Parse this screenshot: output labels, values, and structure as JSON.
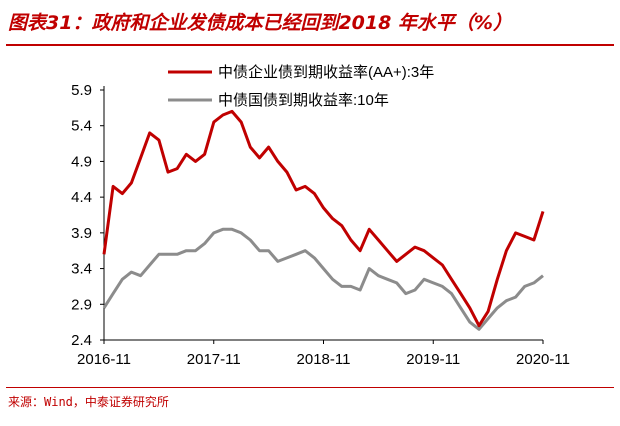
{
  "header": {
    "title": "图表31：政府和企业发债成本已经回到2018 年水平（%）"
  },
  "footer": {
    "source": "来源：Wind，中泰证券研究所"
  },
  "colors": {
    "title_red": "#c00000",
    "series_red": "#c00000",
    "series_gray": "#8c8c8c"
  },
  "chart_data": {
    "type": "line",
    "title": "",
    "xlabel": "",
    "ylabel": "",
    "ylim": [
      2.4,
      5.9
    ],
    "yticks": [
      "5.9",
      "5.4",
      "4.9",
      "4.4",
      "3.9",
      "3.4",
      "2.9",
      "2.4"
    ],
    "xticks": [
      "2016-11",
      "2017-11",
      "2018-11",
      "2019-11",
      "2020-11"
    ],
    "x_range": [
      "2016-11",
      "2020-11"
    ],
    "grid": false,
    "legend_position": "top-center",
    "series": [
      {
        "name": "中债企业债到期收益率(AA+):3年",
        "color": "#c00000",
        "points": [
          [
            "2016-11",
            3.6
          ],
          [
            "2016-12",
            4.55
          ],
          [
            "2017-01",
            4.45
          ],
          [
            "2017-02",
            4.6
          ],
          [
            "2017-03",
            4.95
          ],
          [
            "2017-04",
            5.3
          ],
          [
            "2017-05",
            5.2
          ],
          [
            "2017-06",
            4.75
          ],
          [
            "2017-07",
            4.8
          ],
          [
            "2017-08",
            5.0
          ],
          [
            "2017-09",
            4.9
          ],
          [
            "2017-10",
            5.0
          ],
          [
            "2017-11",
            5.45
          ],
          [
            "2017-12",
            5.55
          ],
          [
            "2018-01",
            5.6
          ],
          [
            "2018-02",
            5.45
          ],
          [
            "2018-03",
            5.1
          ],
          [
            "2018-04",
            4.95
          ],
          [
            "2018-05",
            5.1
          ],
          [
            "2018-06",
            4.9
          ],
          [
            "2018-07",
            4.75
          ],
          [
            "2018-08",
            4.5
          ],
          [
            "2018-09",
            4.55
          ],
          [
            "2018-10",
            4.45
          ],
          [
            "2018-11",
            4.25
          ],
          [
            "2018-12",
            4.1
          ],
          [
            "2019-01",
            4.0
          ],
          [
            "2019-02",
            3.8
          ],
          [
            "2019-03",
            3.65
          ],
          [
            "2019-04",
            3.95
          ],
          [
            "2019-05",
            3.8
          ],
          [
            "2019-06",
            3.65
          ],
          [
            "2019-07",
            3.5
          ],
          [
            "2019-08",
            3.6
          ],
          [
            "2019-09",
            3.7
          ],
          [
            "2019-10",
            3.65
          ],
          [
            "2019-11",
            3.55
          ],
          [
            "2019-12",
            3.45
          ],
          [
            "2020-01",
            3.25
          ],
          [
            "2020-02",
            3.05
          ],
          [
            "2020-03",
            2.85
          ],
          [
            "2020-04",
            2.6
          ],
          [
            "2020-05",
            2.8
          ],
          [
            "2020-06",
            3.25
          ],
          [
            "2020-07",
            3.65
          ],
          [
            "2020-08",
            3.9
          ],
          [
            "2020-09",
            3.85
          ],
          [
            "2020-10",
            3.8
          ],
          [
            "2020-11",
            4.2
          ]
        ]
      },
      {
        "name": "中债国债到期收益率:10年",
        "color": "#8c8c8c",
        "points": [
          [
            "2016-11",
            2.85
          ],
          [
            "2016-12",
            3.05
          ],
          [
            "2017-01",
            3.25
          ],
          [
            "2017-02",
            3.35
          ],
          [
            "2017-03",
            3.3
          ],
          [
            "2017-04",
            3.45
          ],
          [
            "2017-05",
            3.6
          ],
          [
            "2017-06",
            3.6
          ],
          [
            "2017-07",
            3.6
          ],
          [
            "2017-08",
            3.65
          ],
          [
            "2017-09",
            3.65
          ],
          [
            "2017-10",
            3.75
          ],
          [
            "2017-11",
            3.9
          ],
          [
            "2017-12",
            3.95
          ],
          [
            "2018-01",
            3.95
          ],
          [
            "2018-02",
            3.9
          ],
          [
            "2018-03",
            3.8
          ],
          [
            "2018-04",
            3.65
          ],
          [
            "2018-05",
            3.65
          ],
          [
            "2018-06",
            3.5
          ],
          [
            "2018-07",
            3.55
          ],
          [
            "2018-08",
            3.6
          ],
          [
            "2018-09",
            3.65
          ],
          [
            "2018-10",
            3.55
          ],
          [
            "2018-11",
            3.4
          ],
          [
            "2018-12",
            3.25
          ],
          [
            "2019-01",
            3.15
          ],
          [
            "2019-02",
            3.15
          ],
          [
            "2019-03",
            3.1
          ],
          [
            "2019-04",
            3.4
          ],
          [
            "2019-05",
            3.3
          ],
          [
            "2019-06",
            3.25
          ],
          [
            "2019-07",
            3.2
          ],
          [
            "2019-08",
            3.05
          ],
          [
            "2019-09",
            3.1
          ],
          [
            "2019-10",
            3.25
          ],
          [
            "2019-11",
            3.2
          ],
          [
            "2019-12",
            3.15
          ],
          [
            "2020-01",
            3.05
          ],
          [
            "2020-02",
            2.85
          ],
          [
            "2020-03",
            2.65
          ],
          [
            "2020-04",
            2.55
          ],
          [
            "2020-05",
            2.7
          ],
          [
            "2020-06",
            2.85
          ],
          [
            "2020-07",
            2.95
          ],
          [
            "2020-08",
            3.0
          ],
          [
            "2020-09",
            3.15
          ],
          [
            "2020-10",
            3.2
          ],
          [
            "2020-11",
            3.3
          ]
        ]
      }
    ]
  }
}
